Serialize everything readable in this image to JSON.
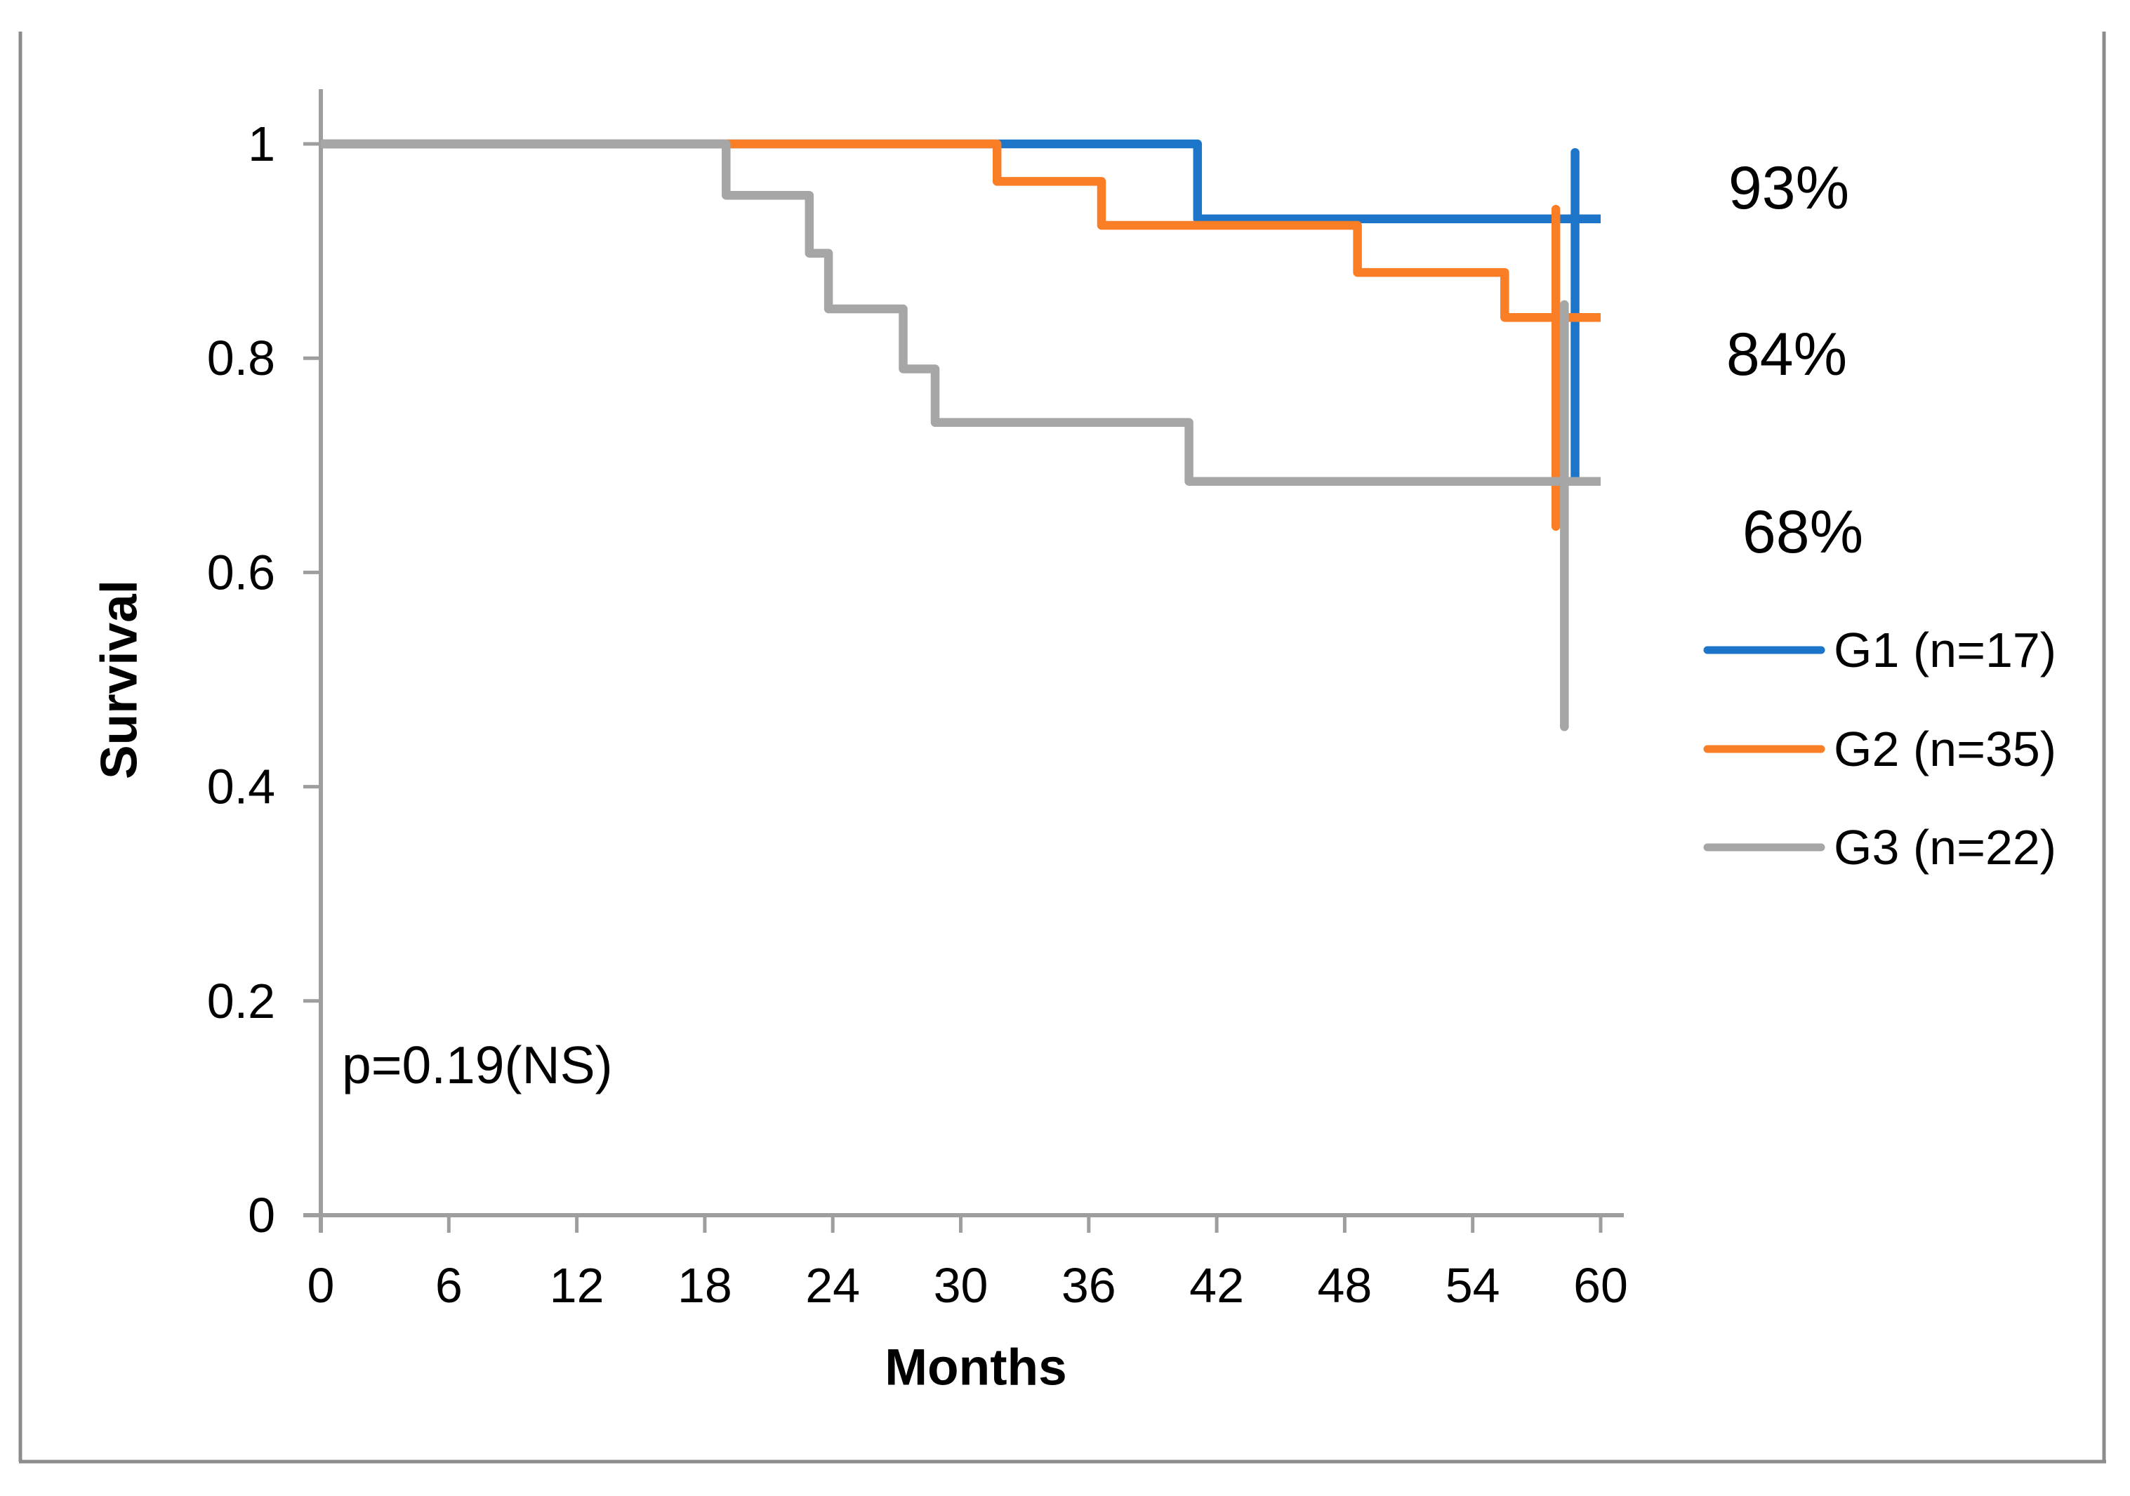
{
  "chart_data": {
    "type": "line",
    "subtype": "kaplan-meier-step",
    "title": "",
    "xlabel": "Months",
    "ylabel": "Survival",
    "xlim": [
      0,
      60
    ],
    "ylim": [
      0,
      1
    ],
    "x_ticks": [
      0,
      6,
      12,
      18,
      24,
      30,
      36,
      42,
      48,
      54,
      60
    ],
    "y_ticks": [
      0,
      0.2,
      0.4,
      0.6,
      0.8,
      1
    ],
    "grid": "off",
    "legend_position": "right",
    "p_value_annotation": "p=0.19(NS)",
    "axis_color": "#9E9E9E",
    "border_color": "#8C8C8C",
    "series": [
      {
        "name": "G1 (n=17)",
        "color": "#1C75C8",
        "final_label": "93%",
        "steps": [
          [
            0,
            1
          ],
          [
            41.1,
            1
          ],
          [
            41.1,
            0.93
          ],
          [
            60,
            0.93
          ]
        ],
        "censor_tick": {
          "x": 58.8,
          "y_top": 0.992,
          "y_bottom": 0.687
        }
      },
      {
        "name": "G2 (n=35)",
        "color": "#F97E26",
        "final_label": "84%",
        "steps": [
          [
            0,
            1
          ],
          [
            31.7,
            1
          ],
          [
            31.7,
            0.965
          ],
          [
            36.6,
            0.965
          ],
          [
            36.6,
            0.924
          ],
          [
            48.6,
            0.924
          ],
          [
            48.6,
            0.88
          ],
          [
            55.5,
            0.88
          ],
          [
            55.5,
            0.838
          ],
          [
            60,
            0.838
          ]
        ],
        "censor_tick": {
          "x": 57.9,
          "y_top": 0.939,
          "y_bottom": 0.643
        }
      },
      {
        "name": "G3 (n=22)",
        "color": "#A6A6A6",
        "final_label": "68%",
        "steps": [
          [
            0,
            1
          ],
          [
            19,
            1
          ],
          [
            19,
            0.952
          ],
          [
            22.9,
            0.952
          ],
          [
            22.9,
            0.898
          ],
          [
            23.8,
            0.898
          ],
          [
            23.8,
            0.846
          ],
          [
            27.3,
            0.846
          ],
          [
            27.3,
            0.79
          ],
          [
            28.8,
            0.79
          ],
          [
            28.8,
            0.74
          ],
          [
            40.7,
            0.74
          ],
          [
            40.7,
            0.685
          ],
          [
            60,
            0.685
          ]
        ],
        "censor_tick": {
          "x": 58.3,
          "y_top": 0.85,
          "y_bottom": 0.456
        }
      }
    ]
  }
}
